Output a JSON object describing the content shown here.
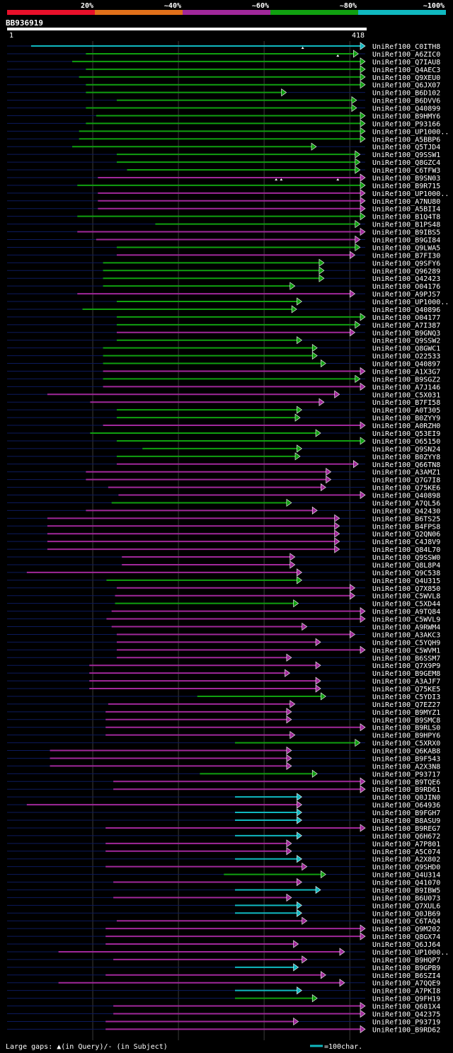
{
  "identity_legend": [
    {
      "label": "20%",
      "color": "#e8102a"
    },
    {
      "label": "~40%",
      "color": "#e0701a"
    },
    {
      "label": "~60%",
      "color": "#a0289a"
    },
    {
      "label": "~80%",
      "color": "#10a010"
    },
    {
      "label": "~100%",
      "color": "#10b8c0"
    }
  ],
  "query": {
    "name": "BB936919",
    "start": "1",
    "end": "418",
    "length": 418
  },
  "footer": {
    "gaps_text": "Large gaps: ▲(in Query)/- (in Subject)",
    "scale_text": "=100char."
  },
  "colors": {
    "cyan": "#10b8c0",
    "green": "#10a010",
    "magenta": "#a0289a",
    "backbone": "#0c1a5c",
    "grid": "#3a3a3a"
  },
  "hits": [
    {
      "name": "UniRef100_C0ITH8",
      "s": 28,
      "e": 418,
      "c": "cyan",
      "m": [
        345
      ]
    },
    {
      "name": "UniRef100_A6ZIC0",
      "s": 92,
      "e": 410,
      "c": "green",
      "m": [
        386
      ]
    },
    {
      "name": "UniRef100_Q7IAU8",
      "s": 76,
      "e": 418,
      "c": "green",
      "m": []
    },
    {
      "name": "UniRef100_Q4AEC3",
      "s": 92,
      "e": 418,
      "c": "green",
      "m": []
    },
    {
      "name": "UniRef100_Q9XEU0",
      "s": 84,
      "e": 418,
      "c": "green",
      "m": []
    },
    {
      "name": "UniRef100_Q6JX07",
      "s": 92,
      "e": 418,
      "c": "green",
      "m": []
    },
    {
      "name": "UniRef100_B6D102",
      "s": 92,
      "e": 326,
      "c": "green",
      "m": []
    },
    {
      "name": "UniRef100_B6DVV6",
      "s": 128,
      "e": 408,
      "c": "green",
      "m": []
    },
    {
      "name": "UniRef100_Q40899",
      "s": 92,
      "e": 408,
      "c": "green",
      "m": []
    },
    {
      "name": "UniRef100_B9HMY6",
      "s": 104,
      "e": 418,
      "c": "green",
      "m": []
    },
    {
      "name": "UniRef100_P93166",
      "s": 92,
      "e": 418,
      "c": "green",
      "m": []
    },
    {
      "name": "UniRef100_UP1000..",
      "s": 84,
      "e": 418,
      "c": "green",
      "m": []
    },
    {
      "name": "UniRef100_A5BBP6",
      "s": 84,
      "e": 418,
      "c": "green",
      "m": []
    },
    {
      "name": "UniRef100_Q5TJD4",
      "s": 76,
      "e": 361,
      "c": "green",
      "m": []
    },
    {
      "name": "UniRef100_Q9SSW1",
      "s": 128,
      "e": 412,
      "c": "green",
      "m": []
    },
    {
      "name": "UniRef100_Q8GZC4",
      "s": 128,
      "e": 412,
      "c": "green",
      "m": []
    },
    {
      "name": "UniRef100_C6TFW3",
      "s": 140,
      "e": 412,
      "c": "green",
      "m": []
    },
    {
      "name": "UniRef100_B9SN03",
      "s": 106,
      "e": 418,
      "c": "magenta",
      "m": [
        314,
        320,
        386
      ]
    },
    {
      "name": "UniRef100_B9R715",
      "s": 82,
      "e": 418,
      "c": "green",
      "m": []
    },
    {
      "name": "UniRef100_UP1000..",
      "s": 106,
      "e": 418,
      "c": "magenta",
      "m": []
    },
    {
      "name": "UniRef100_A7NU80",
      "s": 106,
      "e": 418,
      "c": "magenta",
      "m": []
    },
    {
      "name": "UniRef100_A5BII4",
      "s": 106,
      "e": 418,
      "c": "magenta",
      "m": []
    },
    {
      "name": "UniRef100_B1Q4T8",
      "s": 82,
      "e": 418,
      "c": "green",
      "m": []
    },
    {
      "name": "UniRef100_B1PS48",
      "s": 173,
      "e": 412,
      "c": "green",
      "m": []
    },
    {
      "name": "UniRef100_B9IBS5",
      "s": 82,
      "e": 418,
      "c": "magenta",
      "m": []
    },
    {
      "name": "UniRef100_B9GI84",
      "s": 104,
      "e": 412,
      "c": "magenta",
      "m": []
    },
    {
      "name": "UniRef100_Q9LWA5",
      "s": 128,
      "e": 412,
      "c": "green",
      "m": []
    },
    {
      "name": "UniRef100_B7FI30",
      "s": 128,
      "e": 406,
      "c": "magenta",
      "m": []
    },
    {
      "name": "UniRef100_Q9SFY6",
      "s": 112,
      "e": 370,
      "c": "green",
      "m": []
    },
    {
      "name": "UniRef100_Q96289",
      "s": 112,
      "e": 370,
      "c": "green",
      "m": []
    },
    {
      "name": "UniRef100_Q42423",
      "s": 112,
      "e": 370,
      "c": "green",
      "m": []
    },
    {
      "name": "UniRef100_O04176",
      "s": 112,
      "e": 336,
      "c": "green",
      "m": []
    },
    {
      "name": "UniRef100_A9PJS7",
      "s": 82,
      "e": 406,
      "c": "magenta",
      "m": []
    },
    {
      "name": "UniRef100_UP1000..",
      "s": 128,
      "e": 344,
      "c": "green",
      "m": []
    },
    {
      "name": "UniRef100_Q40896",
      "s": 88,
      "e": 338,
      "c": "green",
      "m": []
    },
    {
      "name": "UniRef100_O04177",
      "s": 128,
      "e": 418,
      "c": "green",
      "m": []
    },
    {
      "name": "UniRef100_A7I387",
      "s": 128,
      "e": 412,
      "c": "green",
      "m": []
    },
    {
      "name": "UniRef100_B9GNQ3",
      "s": 128,
      "e": 406,
      "c": "magenta",
      "m": []
    },
    {
      "name": "UniRef100_Q9SSW2",
      "s": 128,
      "e": 344,
      "c": "green",
      "m": []
    },
    {
      "name": "UniRef100_Q8GWC1",
      "s": 112,
      "e": 362,
      "c": "green",
      "m": []
    },
    {
      "name": "UniRef100_O22533",
      "s": 112,
      "e": 362,
      "c": "green",
      "m": []
    },
    {
      "name": "UniRef100_Q40897",
      "s": 112,
      "e": 372,
      "c": "green",
      "m": []
    },
    {
      "name": "UniRef100_A1X3G7",
      "s": 112,
      "e": 418,
      "c": "magenta",
      "m": []
    },
    {
      "name": "UniRef100_B9SGZ2",
      "s": 112,
      "e": 412,
      "c": "green",
      "m": []
    },
    {
      "name": "UniRef100_A7J146",
      "s": 112,
      "e": 418,
      "c": "magenta",
      "m": []
    },
    {
      "name": "UniRef100_C5X031",
      "s": 47,
      "e": 388,
      "c": "magenta",
      "m": []
    },
    {
      "name": "UniRef100_B7FI58",
      "s": 97,
      "e": 370,
      "c": "magenta",
      "m": []
    },
    {
      "name": "UniRef100_A0T305",
      "s": 128,
      "e": 344,
      "c": "green",
      "m": []
    },
    {
      "name": "UniRef100_B0ZYY9",
      "s": 128,
      "e": 342,
      "c": "green",
      "m": []
    },
    {
      "name": "UniRef100_A0RZH0",
      "s": 112,
      "e": 418,
      "c": "magenta",
      "m": []
    },
    {
      "name": "UniRef100_Q53EI9",
      "s": 97,
      "e": 366,
      "c": "green",
      "m": []
    },
    {
      "name": "UniRef100_O65150",
      "s": 128,
      "e": 418,
      "c": "green",
      "m": []
    },
    {
      "name": "UniRef100_Q9SN24",
      "s": 158,
      "e": 344,
      "c": "green",
      "m": []
    },
    {
      "name": "UniRef100_B0ZYY8",
      "s": 128,
      "e": 342,
      "c": "green",
      "m": []
    },
    {
      "name": "UniRef100_Q66TN8",
      "s": 128,
      "e": 410,
      "c": "magenta",
      "m": []
    },
    {
      "name": "UniRef100_A3AMZ1",
      "s": 92,
      "e": 378,
      "c": "magenta",
      "m": []
    },
    {
      "name": "UniRef100_Q7G7I8",
      "s": 92,
      "e": 378,
      "c": "magenta",
      "m": []
    },
    {
      "name": "UniRef100_Q75KE6",
      "s": 118,
      "e": 372,
      "c": "magenta",
      "m": []
    },
    {
      "name": "UniRef100_Q40898",
      "s": 130,
      "e": 418,
      "c": "magenta",
      "m": []
    },
    {
      "name": "UniRef100_A7QL56",
      "s": 122,
      "e": 332,
      "c": "green",
      "m": []
    },
    {
      "name": "UniRef100_Q42430",
      "s": 92,
      "e": 362,
      "c": "magenta",
      "m": []
    },
    {
      "name": "UniRef100_B6TS25",
      "s": 47,
      "e": 388,
      "c": "magenta",
      "m": []
    },
    {
      "name": "UniRef100_B4FPS8",
      "s": 47,
      "e": 388,
      "c": "magenta",
      "m": []
    },
    {
      "name": "UniRef100_Q2QN06",
      "s": 47,
      "e": 388,
      "c": "magenta",
      "m": []
    },
    {
      "name": "UniRef100_C4J8V9",
      "s": 47,
      "e": 388,
      "c": "magenta",
      "m": []
    },
    {
      "name": "UniRef100_Q84L70",
      "s": 47,
      "e": 388,
      "c": "magenta",
      "m": []
    },
    {
      "name": "UniRef100_Q9SSW0",
      "s": 134,
      "e": 336,
      "c": "magenta",
      "m": []
    },
    {
      "name": "UniRef100_Q8L8P4",
      "s": 134,
      "e": 336,
      "c": "magenta",
      "m": []
    },
    {
      "name": "UniRef100_Q9C538",
      "s": 23,
      "e": 344,
      "c": "magenta",
      "m": []
    },
    {
      "name": "UniRef100_Q4U315",
      "s": 116,
      "e": 344,
      "c": "green",
      "m": []
    },
    {
      "name": "UniRef100_Q7X850",
      "s": 128,
      "e": 406,
      "c": "magenta",
      "m": []
    },
    {
      "name": "UniRef100_C5WVL8",
      "s": 126,
      "e": 406,
      "c": "magenta",
      "m": []
    },
    {
      "name": "UniRef100_C5XD44",
      "s": 126,
      "e": 340,
      "c": "green",
      "m": []
    },
    {
      "name": "UniRef100_A9TQ84",
      "s": 122,
      "e": 418,
      "c": "magenta",
      "m": []
    },
    {
      "name": "UniRef100_C5WVL9",
      "s": 116,
      "e": 418,
      "c": "magenta",
      "m": []
    },
    {
      "name": "UniRef100_A9RWM4",
      "s": 122,
      "e": 350,
      "c": "magenta",
      "m": []
    },
    {
      "name": "UniRef100_A3AKC3",
      "s": 128,
      "e": 406,
      "c": "magenta",
      "m": []
    },
    {
      "name": "UniRef100_C5YQH9",
      "s": 128,
      "e": 366,
      "c": "magenta",
      "m": []
    },
    {
      "name": "UniRef100_C5WVM1",
      "s": 128,
      "e": 418,
      "c": "magenta",
      "m": []
    },
    {
      "name": "UniRef100_B6SSM7",
      "s": 128,
      "e": 332,
      "c": "magenta",
      "m": []
    },
    {
      "name": "UniRef100_Q7X9P9",
      "s": 96,
      "e": 366,
      "c": "magenta",
      "m": []
    },
    {
      "name": "UniRef100_B9GEM8",
      "s": 96,
      "e": 330,
      "c": "magenta",
      "m": []
    },
    {
      "name": "UniRef100_A3AJF7",
      "s": 96,
      "e": 366,
      "c": "magenta",
      "m": []
    },
    {
      "name": "UniRef100_Q75KE5",
      "s": 96,
      "e": 366,
      "c": "magenta",
      "m": []
    },
    {
      "name": "UniRef100_C5YDI3",
      "s": 222,
      "e": 372,
      "c": "green",
      "m": []
    },
    {
      "name": "UniRef100_Q7EZ27",
      "s": 118,
      "e": 336,
      "c": "magenta",
      "m": []
    },
    {
      "name": "UniRef100_B9MYZ1",
      "s": 115,
      "e": 332,
      "c": "magenta",
      "m": []
    },
    {
      "name": "UniRef100_B9SMC8",
      "s": 115,
      "e": 332,
      "c": "magenta",
      "m": []
    },
    {
      "name": "UniRef100_B9RLS0",
      "s": 115,
      "e": 418,
      "c": "magenta",
      "m": []
    },
    {
      "name": "UniRef100_B9HPY6",
      "s": 115,
      "e": 336,
      "c": "magenta",
      "m": []
    },
    {
      "name": "UniRef100_C5XRX0",
      "s": 266,
      "e": 412,
      "c": "green",
      "m": []
    },
    {
      "name": "UniRef100_Q6KAB8",
      "s": 50,
      "e": 332,
      "c": "magenta",
      "m": []
    },
    {
      "name": "UniRef100_B9F543",
      "s": 50,
      "e": 332,
      "c": "magenta",
      "m": []
    },
    {
      "name": "UniRef100_A2X3N8",
      "s": 50,
      "e": 332,
      "c": "magenta",
      "m": []
    },
    {
      "name": "UniRef100_P93717",
      "s": 225,
      "e": 362,
      "c": "green",
      "m": []
    },
    {
      "name": "UniRef100_B9TQE6",
      "s": 124,
      "e": 418,
      "c": "magenta",
      "m": []
    },
    {
      "name": "UniRef100_B9RD61",
      "s": 124,
      "e": 418,
      "c": "magenta",
      "m": []
    },
    {
      "name": "UniRef100_Q0JIN0",
      "s": 266,
      "e": 344,
      "c": "cyan",
      "m": []
    },
    {
      "name": "UniRef100_O64936",
      "s": 23,
      "e": 344,
      "c": "magenta",
      "m": []
    },
    {
      "name": "UniRef100_B9FGH7",
      "s": 266,
      "e": 344,
      "c": "cyan",
      "m": []
    },
    {
      "name": "UniRef100_B8ASU9",
      "s": 266,
      "e": 344,
      "c": "cyan",
      "m": []
    },
    {
      "name": "UniRef100_B9REG7",
      "s": 115,
      "e": 418,
      "c": "magenta",
      "m": []
    },
    {
      "name": "UniRef100_Q6H672",
      "s": 266,
      "e": 344,
      "c": "cyan",
      "m": []
    },
    {
      "name": "UniRef100_A7P801",
      "s": 115,
      "e": 332,
      "c": "magenta",
      "m": []
    },
    {
      "name": "UniRef100_A5C074",
      "s": 115,
      "e": 332,
      "c": "magenta",
      "m": []
    },
    {
      "name": "UniRef100_A2X802",
      "s": 266,
      "e": 344,
      "c": "cyan",
      "m": []
    },
    {
      "name": "UniRef100_Q9SHD0",
      "s": 115,
      "e": 350,
      "c": "magenta",
      "m": []
    },
    {
      "name": "UniRef100_Q4U314",
      "s": 253,
      "e": 372,
      "c": "green",
      "m": []
    },
    {
      "name": "UniRef100_Q41070",
      "s": 124,
      "e": 344,
      "c": "magenta",
      "m": []
    },
    {
      "name": "UniRef100_B9IBW5",
      "s": 266,
      "e": 366,
      "c": "cyan",
      "m": []
    },
    {
      "name": "UniRef100_B6U073",
      "s": 124,
      "e": 332,
      "c": "magenta",
      "m": []
    },
    {
      "name": "UniRef100_Q7XUL6",
      "s": 266,
      "e": 344,
      "c": "cyan",
      "m": []
    },
    {
      "name": "UniRef100_Q0JB69",
      "s": 266,
      "e": 344,
      "c": "cyan",
      "m": []
    },
    {
      "name": "UniRef100_C6TAQ4",
      "s": 128,
      "e": 350,
      "c": "magenta",
      "m": []
    },
    {
      "name": "UniRef100_Q9M202",
      "s": 115,
      "e": 418,
      "c": "magenta",
      "m": []
    },
    {
      "name": "UniRef100_Q8GX74",
      "s": 115,
      "e": 418,
      "c": "magenta",
      "m": []
    },
    {
      "name": "UniRef100_Q6JJ64",
      "s": 115,
      "e": 340,
      "c": "magenta",
      "m": []
    },
    {
      "name": "UniRef100_UP1000..",
      "s": 60,
      "e": 394,
      "c": "magenta",
      "m": []
    },
    {
      "name": "UniRef100_B9HQP7",
      "s": 124,
      "e": 350,
      "c": "magenta",
      "m": []
    },
    {
      "name": "UniRef100_B9GPB9",
      "s": 266,
      "e": 340,
      "c": "cyan",
      "m": []
    },
    {
      "name": "UniRef100_B6SZI4",
      "s": 115,
      "e": 372,
      "c": "magenta",
      "m": []
    },
    {
      "name": "UniRef100_A7QQE9",
      "s": 60,
      "e": 394,
      "c": "magenta",
      "m": []
    },
    {
      "name": "UniRef100_A7PKI8",
      "s": 266,
      "e": 344,
      "c": "cyan",
      "m": []
    },
    {
      "name": "UniRef100_Q9FH19",
      "s": 266,
      "e": 362,
      "c": "green",
      "m": []
    },
    {
      "name": "UniRef100_Q681X4",
      "s": 124,
      "e": 418,
      "c": "magenta",
      "m": []
    },
    {
      "name": "UniRef100_Q42375",
      "s": 124,
      "e": 418,
      "c": "magenta",
      "m": []
    },
    {
      "name": "UniRef100_P93719",
      "s": 115,
      "e": 340,
      "c": "magenta",
      "m": []
    },
    {
      "name": "UniRef100_B9RD62",
      "s": 115,
      "e": 418,
      "c": "magenta",
      "m": []
    }
  ]
}
